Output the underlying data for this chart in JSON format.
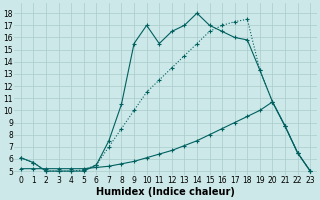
{
  "background_color": "#cce8e8",
  "line_color": "#006060",
  "grid_color": "#aacccc",
  "xlabel": "Humidex (Indice chaleur)",
  "xlim": [
    -0.5,
    23.5
  ],
  "ylim": [
    4.7,
    18.8
  ],
  "yticks": [
    5,
    6,
    7,
    8,
    9,
    10,
    11,
    12,
    13,
    14,
    15,
    16,
    17,
    18
  ],
  "xticks": [
    0,
    1,
    2,
    3,
    4,
    5,
    6,
    7,
    8,
    9,
    10,
    11,
    12,
    13,
    14,
    15,
    16,
    17,
    18,
    19,
    20,
    21,
    22,
    23
  ],
  "curve1_x": [
    0,
    1,
    2,
    3,
    4,
    5,
    6,
    7,
    8,
    9,
    10,
    11,
    12,
    13,
    14,
    15,
    16,
    17,
    18,
    19,
    20,
    21,
    22,
    23
  ],
  "curve1_y": [
    6.1,
    5.7,
    5.0,
    5.0,
    5.0,
    5.0,
    5.5,
    7.5,
    10.5,
    15.5,
    17.0,
    15.5,
    16.5,
    17.0,
    18.0,
    17.0,
    16.5,
    16.0,
    15.8,
    13.3,
    10.7,
    8.7,
    6.5,
    5.0
  ],
  "curve2_x": [
    0,
    1,
    2,
    3,
    4,
    5,
    6,
    7,
    8,
    9,
    10,
    11,
    12,
    13,
    14,
    15,
    16,
    17,
    18,
    19,
    20,
    21,
    22,
    23
  ],
  "curve2_y": [
    6.1,
    5.7,
    5.0,
    5.0,
    5.0,
    5.1,
    5.5,
    7.0,
    8.5,
    10.0,
    11.5,
    12.5,
    13.5,
    14.5,
    15.5,
    16.5,
    17.0,
    17.3,
    17.5,
    13.3,
    10.7,
    8.7,
    6.5,
    5.0
  ],
  "curve3_x": [
    0,
    1,
    2,
    3,
    4,
    5,
    6,
    7,
    8,
    9,
    10,
    11,
    12,
    13,
    14,
    15,
    16,
    17,
    18,
    19,
    20,
    21,
    22,
    23
  ],
  "curve3_y": [
    5.2,
    5.2,
    5.2,
    5.2,
    5.2,
    5.2,
    5.3,
    5.4,
    5.6,
    5.8,
    6.1,
    6.4,
    6.7,
    7.1,
    7.5,
    8.0,
    8.5,
    9.0,
    9.5,
    10.0,
    10.7,
    8.7,
    6.5,
    5.0
  ],
  "tick_fontsize": 5.5,
  "xlabel_fontsize": 7.0,
  "lw": 0.8,
  "ms": 2.5
}
